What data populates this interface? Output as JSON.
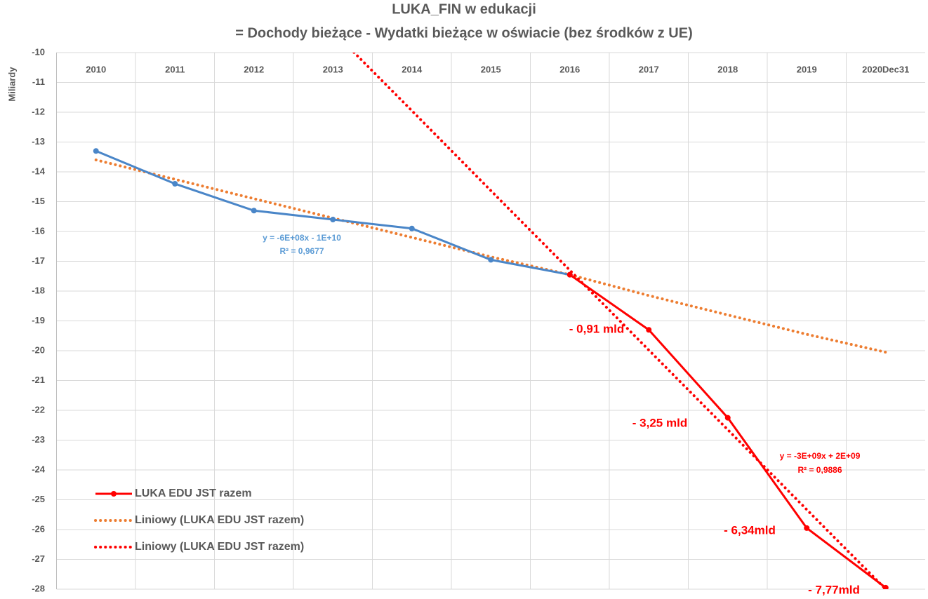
{
  "chart_data": {
    "type": "line",
    "title": "LUKA_FIN w edukacji",
    "subtitle": "= Dochody bieżące - Wydatki bieżące w oświacie (bez środków z UE)",
    "y_label": "Miliardy",
    "categories": [
      "2010",
      "2011",
      "2012",
      "2013",
      "2014",
      "2015",
      "2016",
      "2017",
      "2018",
      "2019",
      "2020Dec31"
    ],
    "ylim": [
      -28,
      -10
    ],
    "yticks": [
      -10,
      -11,
      -12,
      -13,
      -14,
      -15,
      -16,
      -17,
      -18,
      -19,
      -20,
      -21,
      -22,
      -23,
      -24,
      -25,
      -26,
      -27,
      -28
    ],
    "grid": true,
    "legend": "lower left",
    "series": [
      {
        "color": "#4a86c8",
        "style": "solid",
        "marker": true,
        "values": [
          -13.3,
          -14.4,
          -15.3,
          -15.6,
          -15.9,
          -16.95,
          -17.45,
          null,
          null,
          null,
          null
        ]
      },
      {
        "name": "LUKA EDU JST razem",
        "color": "#ff0000",
        "style": "solid",
        "marker": true,
        "values": [
          null,
          null,
          null,
          null,
          null,
          null,
          -17.45,
          -19.3,
          -22.25,
          -25.95,
          -27.95
        ]
      },
      {
        "name": "Liniowy (LUKA EDU JST razem)",
        "color": "#ed7d31",
        "style": "dotted",
        "marker": false,
        "values": [
          -13.6,
          -14.25,
          -14.9,
          -15.55,
          -16.2,
          -16.85,
          -17.45,
          -18.15,
          -18.8,
          -19.45,
          -20.05
        ]
      },
      {
        "name": "Liniowy (LUKA EDU JST razem)",
        "color": "#ff0000",
        "style": "dotted",
        "marker": false,
        "values": [
          null,
          null,
          null,
          -9.28,
          -11.95,
          -14.63,
          -17.3,
          -19.98,
          -22.65,
          -25.33,
          -28.0
        ]
      }
    ],
    "annotations": [
      {
        "text": "y = -6E+08x - 1E+10",
        "color": "#5b9bd5"
      },
      {
        "text": "R² = 0,9677",
        "color": "#5b9bd5"
      },
      {
        "text": "y = -3E+09x + 2E+09",
        "color": "#ff0000"
      },
      {
        "text": "R² = 0,9886",
        "color": "#ff0000"
      },
      {
        "text": "- 0,91 mld",
        "color": "#ff0000"
      },
      {
        "text": "- 3,25 mld",
        "color": "#ff0000"
      },
      {
        "text": "- 6,34mld",
        "color": "#ff0000"
      },
      {
        "text": "- 7,77mld",
        "color": "#ff0000"
      }
    ]
  }
}
